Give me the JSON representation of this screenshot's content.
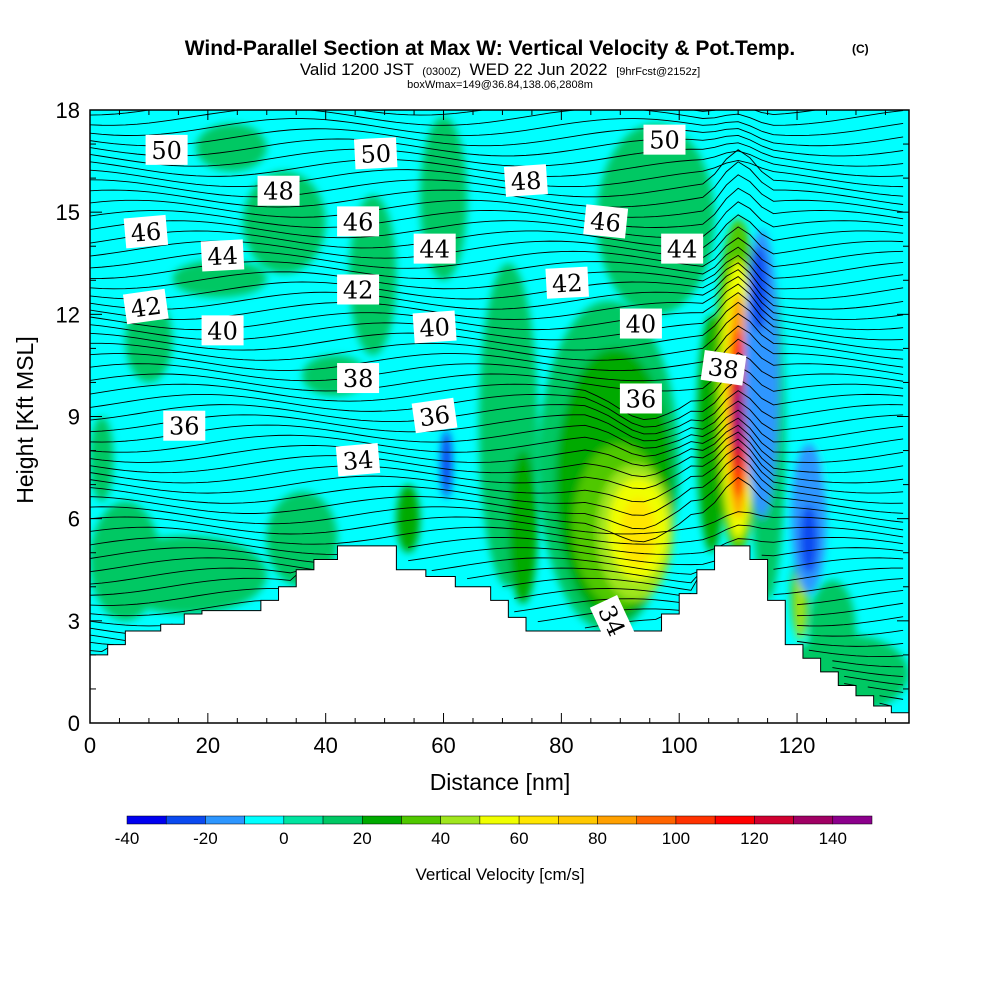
{
  "chart_data": {
    "type": "heatmap",
    "title": "Wind-Parallel Section at Max W: Vertical Velocity & Pot.Temp.",
    "title_mark": "(C)",
    "subtitle_parts": [
      "Valid 1200 JST",
      "(0300Z)",
      "WED 22 Jun 2022",
      "[9hrFcst@2152z]"
    ],
    "subtitle2": "boxWmax=149@36.84,138.06,2808m",
    "xlabel": "Distance [nm]",
    "ylabel": "Height [Kft MSL]",
    "xlim": [
      0,
      139
    ],
    "ylim": [
      0,
      18
    ],
    "x_ticks": [
      "0",
      "20",
      "40",
      "60",
      "80",
      "100",
      "120"
    ],
    "y_ticks": [
      "0",
      "3",
      "6",
      "9",
      "12",
      "15",
      "18"
    ],
    "colorbar": {
      "label": "Vertical Velocity [cm/s]",
      "range": [
        -40,
        150
      ],
      "step": 10,
      "tick_labels": [
        "-40",
        "-20",
        "0",
        "20",
        "40",
        "60",
        "80",
        "100",
        "120",
        "140"
      ],
      "colors": [
        "#0000f0",
        "#0b4af0",
        "#2d96ff",
        "#00ffff",
        "#00e4a0",
        "#00c864",
        "#00aa00",
        "#50c800",
        "#a0e61e",
        "#f0ff00",
        "#ffe600",
        "#ffc800",
        "#ffa000",
        "#ff6400",
        "#ff3200",
        "#ff0000",
        "#d00030",
        "#a00064",
        "#8c008c"
      ]
    },
    "terrain": [
      [
        0,
        2
      ],
      [
        3,
        2
      ],
      [
        3,
        2.3
      ],
      [
        6,
        2.3
      ],
      [
        6,
        2.7
      ],
      [
        12,
        2.7
      ],
      [
        12,
        2.9
      ],
      [
        13,
        2.9
      ],
      [
        13,
        2.9
      ],
      [
        16,
        2.9
      ],
      [
        16,
        3.2
      ],
      [
        19,
        3.2
      ],
      [
        19,
        3.3
      ],
      [
        29,
        3.3
      ],
      [
        29,
        3.6
      ],
      [
        32,
        3.6
      ],
      [
        32,
        4
      ],
      [
        35,
        4
      ],
      [
        35,
        4.5
      ],
      [
        38,
        4.5
      ],
      [
        38,
        4.8
      ],
      [
        42,
        4.8
      ],
      [
        42,
        5.2
      ],
      [
        52,
        5.2
      ],
      [
        52,
        4.5
      ],
      [
        57,
        4.5
      ],
      [
        57,
        4.3
      ],
      [
        62,
        4.3
      ],
      [
        62,
        4
      ],
      [
        68,
        4
      ],
      [
        68,
        3.6
      ],
      [
        71,
        3.6
      ],
      [
        71,
        3.1
      ],
      [
        74,
        3.1
      ],
      [
        74,
        2.7
      ],
      [
        97,
        2.7
      ],
      [
        97,
        3.2
      ],
      [
        100,
        3.2
      ],
      [
        100,
        3.8
      ],
      [
        103,
        3.8
      ],
      [
        103,
        4.5
      ],
      [
        106,
        4.5
      ],
      [
        106,
        5.2
      ],
      [
        112,
        5.2
      ],
      [
        112,
        4.8
      ],
      [
        115,
        4.8
      ],
      [
        115,
        3.6
      ],
      [
        118,
        3.6
      ],
      [
        118,
        2.3
      ],
      [
        121,
        2.3
      ],
      [
        121,
        1.9
      ],
      [
        124,
        1.9
      ],
      [
        124,
        1.5
      ],
      [
        127,
        1.5
      ],
      [
        127,
        1.1
      ],
      [
        130,
        1.1
      ],
      [
        130,
        0.8
      ],
      [
        133,
        0.8
      ],
      [
        133,
        0.5
      ],
      [
        136,
        0.5
      ],
      [
        136,
        0.3
      ],
      [
        139,
        0.3
      ]
    ],
    "theta_labels": [
      {
        "text": "50",
        "x": 13,
        "y": 16.8,
        "angle": 0
      },
      {
        "text": "50",
        "x": 48.5,
        "y": 16.7,
        "angle": -3
      },
      {
        "text": "50",
        "x": 97.5,
        "y": 17.1,
        "angle": 0
      },
      {
        "text": "48",
        "x": 32,
        "y": 15.6,
        "angle": 0
      },
      {
        "text": "48",
        "x": 74,
        "y": 15.9,
        "angle": -4
      },
      {
        "text": "46",
        "x": 9.5,
        "y": 14.4,
        "angle": -5
      },
      {
        "text": "46",
        "x": 45.5,
        "y": 14.7,
        "angle": 0
      },
      {
        "text": "46",
        "x": 87.5,
        "y": 14.7,
        "angle": 6
      },
      {
        "text": "44",
        "x": 22.5,
        "y": 13.7,
        "angle": -3
      },
      {
        "text": "44",
        "x": 58.5,
        "y": 13.9,
        "angle": 0
      },
      {
        "text": "44",
        "x": 100.5,
        "y": 13.9,
        "angle": 0
      },
      {
        "text": "42",
        "x": 9.5,
        "y": 12.2,
        "angle": -8
      },
      {
        "text": "42",
        "x": 45.5,
        "y": 12.7,
        "angle": 0
      },
      {
        "text": "42",
        "x": 81,
        "y": 12.9,
        "angle": -3
      },
      {
        "text": "40",
        "x": 22.5,
        "y": 11.5,
        "angle": 0
      },
      {
        "text": "40",
        "x": 58.5,
        "y": 11.6,
        "angle": -4
      },
      {
        "text": "40",
        "x": 93.5,
        "y": 11.7,
        "angle": 0
      },
      {
        "text": "38",
        "x": 45.5,
        "y": 10.1,
        "angle": 0
      },
      {
        "text": "38",
        "x": 107.5,
        "y": 10.4,
        "angle": 8
      },
      {
        "text": "36",
        "x": 16,
        "y": 8.7,
        "angle": 0
      },
      {
        "text": "36",
        "x": 58.5,
        "y": 9.0,
        "angle": -8
      },
      {
        "text": "36",
        "x": 93.5,
        "y": 9.5,
        "angle": 0
      },
      {
        "text": "34",
        "x": 45.5,
        "y": 7.7,
        "angle": -5
      },
      {
        "text": "34",
        "x": 88.5,
        "y": 3.0,
        "angle": 65
      }
    ],
    "w_cells": [
      {
        "x": [
          0,
          12
        ],
        "y": [
          3.0,
          6.5
        ],
        "v": 15
      },
      {
        "x": [
          3,
          30
        ],
        "y": [
          3.2,
          5.5
        ],
        "v": 15
      },
      {
        "x": [
          30,
          42
        ],
        "y": [
          4.0,
          6.8
        ],
        "v": 15
      },
      {
        "x": [
          6,
          14
        ],
        "y": [
          10.0,
          12.5
        ],
        "v": 15
      },
      {
        "x": [
          0,
          4
        ],
        "y": [
          6.5,
          9.0
        ],
        "v": 15
      },
      {
        "x": [
          14,
          30
        ],
        "y": [
          12.5,
          13.6
        ],
        "v": 15
      },
      {
        "x": [
          26,
          40
        ],
        "y": [
          13.2,
          16.2
        ],
        "v": 15
      },
      {
        "x": [
          18,
          30
        ],
        "y": [
          16.2,
          17.6
        ],
        "v": 15
      },
      {
        "x": [
          36,
          47
        ],
        "y": [
          9.6,
          10.8
        ],
        "v": 15
      },
      {
        "x": [
          44,
          52
        ],
        "y": [
          10.8,
          15.5
        ],
        "v": 15
      },
      {
        "x": [
          56,
          64
        ],
        "y": [
          13.0,
          17.8
        ],
        "v": 15
      },
      {
        "x": [
          66,
          76
        ],
        "y": [
          4.0,
          13.5
        ],
        "v": 15
      },
      {
        "x": [
          76,
          100
        ],
        "y": [
          2.7,
          12.4
        ],
        "v": 15
      },
      {
        "x": [
          86,
          106
        ],
        "y": [
          12.0,
          17.6
        ],
        "v": 15
      },
      {
        "x": [
          112,
          118
        ],
        "y": [
          3.6,
          13.5
        ],
        "v": 15
      },
      {
        "x": [
          122,
          130
        ],
        "y": [
          1.2,
          4.2
        ],
        "v": 15
      },
      {
        "x": [
          118,
          139
        ],
        "y": [
          0.3,
          2.6
        ],
        "v": 15
      },
      {
        "x": [
          58,
          64
        ],
        "y": [
          9.6,
          12.0
        ],
        "v": -5
      },
      {
        "x": [
          52,
          56
        ],
        "y": [
          5.0,
          7.0
        ],
        "v": 25
      },
      {
        "x": [
          71,
          76
        ],
        "y": [
          3.5,
          8.0
        ],
        "v": 25
      },
      {
        "x": [
          79,
          99
        ],
        "y": [
          3.0,
          11.0
        ],
        "v": 25
      },
      {
        "x": [
          103,
          108
        ],
        "y": [
          5.0,
          12.0
        ],
        "v": 25
      },
      {
        "x": [
          119,
          122
        ],
        "y": [
          2.5,
          5.0
        ],
        "v": 25
      },
      {
        "x": [
          82,
          98
        ],
        "y": [
          3.4,
          8.2
        ],
        "v": 35
      },
      {
        "x": [
          86,
          99
        ],
        "y": [
          3.6,
          7.6
        ],
        "v": 45
      },
      {
        "x": [
          88,
          98
        ],
        "y": [
          4.2,
          7.2
        ],
        "v": 55
      },
      {
        "x": [
          90,
          96
        ],
        "y": [
          4.6,
          6.6
        ],
        "v": 65
      },
      {
        "x": [
          106,
          114
        ],
        "y": [
          5.0,
          14.8
        ],
        "v": 35
      },
      {
        "x": [
          107,
          113
        ],
        "y": [
          5.4,
          13.6
        ],
        "v": 55
      },
      {
        "x": [
          108,
          112
        ],
        "y": [
          6.0,
          12.6
        ],
        "v": 85
      },
      {
        "x": [
          108.5,
          111.5
        ],
        "y": [
          6.6,
          11.6
        ],
        "v": 105
      },
      {
        "x": [
          109,
          111
        ],
        "y": [
          7.4,
          10.6
        ],
        "v": 125
      },
      {
        "x": [
          109.5,
          110.8
        ],
        "y": [
          8.0,
          9.8
        ],
        "v": 145
      },
      {
        "x": [
          119.5,
          121.5
        ],
        "y": [
          2.4,
          4.8
        ],
        "v": 45
      },
      {
        "x": [
          59.5,
          61.5
        ],
        "y": [
          6.6,
          8.6
        ],
        "v": -25
      },
      {
        "x": [
          111,
          117
        ],
        "y": [
          6.0,
          14.5
        ],
        "v": -15
      },
      {
        "x": [
          112,
          115
        ],
        "y": [
          11.5,
          14.0
        ],
        "v": -25
      },
      {
        "x": [
          119,
          125
        ],
        "y": [
          3.8,
          8.2
        ],
        "v": -15
      },
      {
        "x": [
          120.5,
          123.5
        ],
        "y": [
          4.4,
          6.4
        ],
        "v": -25
      },
      {
        "x": [
          124,
          129
        ],
        "y": [
          6.5,
          9.5
        ],
        "v": -5
      }
    ]
  }
}
